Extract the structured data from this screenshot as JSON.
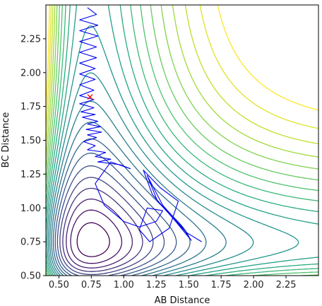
{
  "chart_data": {
    "type": "line",
    "title": "",
    "xlabel": "AB Distance",
    "ylabel": "BC Distance",
    "xlim": [
      0.4,
      2.5
    ],
    "ylim": [
      0.5,
      2.5
    ],
    "xticks": [
      "0.50",
      "0.75",
      "1.00",
      "1.25",
      "1.50",
      "1.75",
      "2.00",
      "2.25"
    ],
    "yticks": [
      "0.50",
      "0.75",
      "1.00",
      "1.25",
      "1.50",
      "1.75",
      "2.00",
      "2.25"
    ],
    "grid": false,
    "legend": "none",
    "colormap": "viridis",
    "contour_levels": 22,
    "series": [
      {
        "kind": "trajectory",
        "color": "#0000ee",
        "x": [
          0.72,
          0.79,
          0.66,
          0.8,
          0.66,
          0.8,
          0.66,
          0.79,
          0.66,
          0.79,
          0.66,
          0.78,
          0.66,
          0.78,
          0.66,
          0.77,
          0.66,
          0.77,
          0.66,
          0.77,
          0.67,
          0.78,
          0.68,
          0.8,
          0.72,
          0.82,
          0.71,
          0.83,
          0.72,
          0.79,
          0.69,
          0.78,
          0.72,
          0.86,
          0.78,
          0.9,
          0.8,
          0.97,
          1.05,
          0.9,
          0.78,
          0.85,
          1.0,
          1.12,
          1.25,
          1.3,
          1.18,
          1.12,
          1.2,
          1.35,
          1.42,
          1.28,
          1.15,
          1.22,
          1.4,
          1.52,
          1.45,
          1.3,
          1.18,
          1.26,
          1.48,
          1.6
        ],
        "y": [
          2.48,
          2.43,
          2.39,
          2.35,
          2.31,
          2.27,
          2.23,
          2.19,
          2.15,
          2.11,
          2.07,
          2.03,
          1.99,
          1.95,
          1.91,
          1.87,
          1.83,
          1.8,
          1.77,
          1.74,
          1.71,
          1.69,
          1.67,
          1.64,
          1.62,
          1.6,
          1.58,
          1.56,
          1.54,
          1.52,
          1.49,
          1.46,
          1.43,
          1.41,
          1.38,
          1.36,
          1.34,
          1.32,
          1.29,
          1.34,
          1.18,
          1.02,
          0.9,
          0.86,
          0.9,
          0.98,
          1.0,
          0.84,
          0.75,
          0.85,
          1.05,
          1.15,
          1.28,
          1.1,
          0.9,
          0.76,
          0.86,
          1.02,
          1.24,
          1.05,
          0.82,
          0.75
        ]
      },
      {
        "kind": "marker",
        "color": "#ff0000",
        "x": [
          0.74
        ],
        "y": [
          1.82
        ]
      }
    ]
  }
}
